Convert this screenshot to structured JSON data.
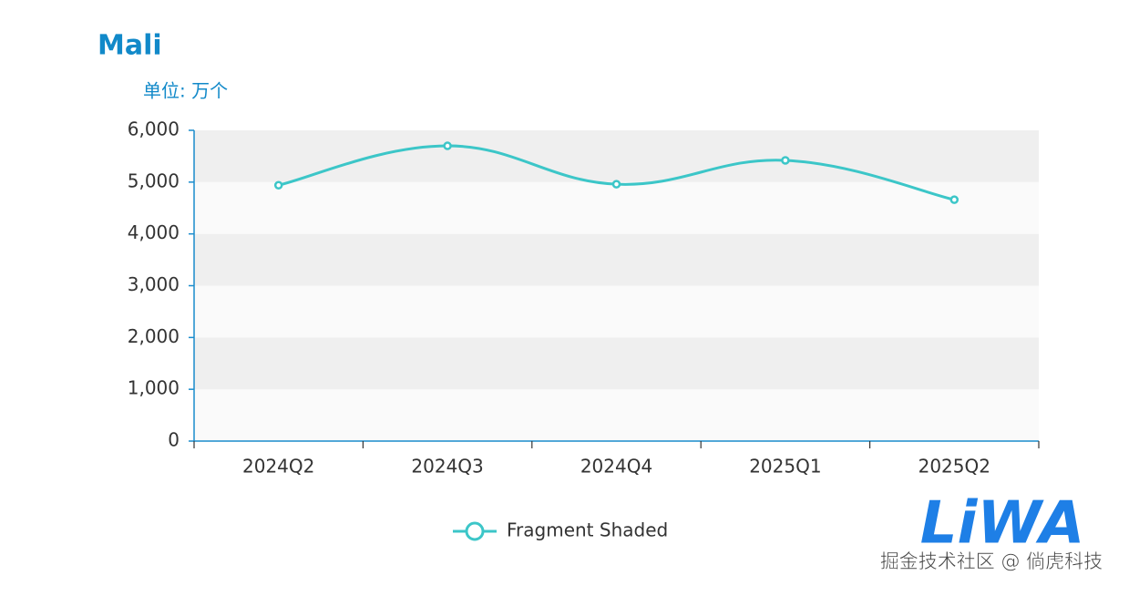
{
  "chart_data": {
    "type": "line",
    "title": "Mali",
    "subtitle": "单位: 万个",
    "categories": [
      "2024Q2",
      "2024Q3",
      "2024Q4",
      "2025Q1",
      "2025Q2"
    ],
    "series": [
      {
        "name": "Fragment Shaded",
        "color": "#3cc6c8",
        "values": [
          4940,
          5700,
          4960,
          5420,
          4660
        ]
      }
    ],
    "ylim": [
      0,
      6000
    ],
    "yticks": [
      0,
      {
        "value": 1000,
        "label": "1,000"
      },
      {
        "value": 2000,
        "label": "2,000"
      },
      {
        "value": 3000,
        "label": "3,000"
      },
      {
        "value": 4000,
        "label": "4,000"
      },
      {
        "value": 5000,
        "label": "5,000"
      },
      {
        "value": 6000,
        "label": "6,000"
      }
    ],
    "smooth": true,
    "striped_bands": true,
    "legend": "bottom"
  },
  "watermark": {
    "logo": "LiWA",
    "text": "掘金技术社区 @ 倘虎科技"
  }
}
